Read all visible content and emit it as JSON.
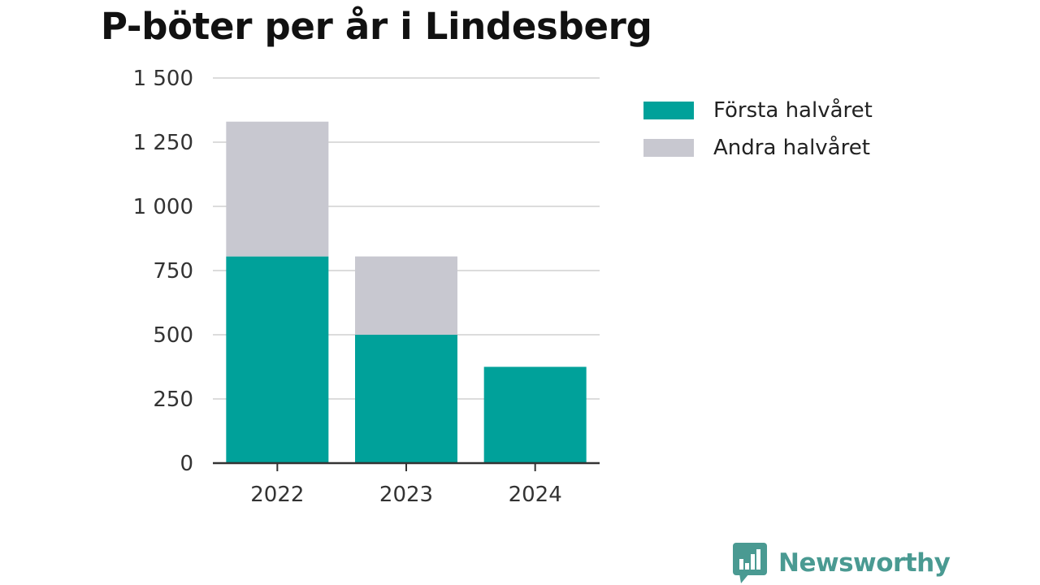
{
  "title": "P-böter per år i Lindesberg",
  "brand": {
    "name": "Newsworthy",
    "logo_icon": "newsworthy-bar-chart-bubble-logo"
  },
  "colors": {
    "first_half": "#00a19a",
    "second_half": "#c8c8d0",
    "grid": "#dcdcdc",
    "axis": "#333333",
    "brand": "#4a9a92"
  },
  "chart_data": {
    "type": "bar",
    "stacked": true,
    "title": "P-böter per år i Lindesberg",
    "xlabel": "",
    "ylabel": "",
    "categories": [
      "2022",
      "2023",
      "2024"
    ],
    "series": [
      {
        "name": "Första halvåret",
        "values": [
          805,
          500,
          375
        ],
        "color": "#00a19a"
      },
      {
        "name": "Andra halvåret",
        "values": [
          525,
          305,
          0
        ],
        "color": "#c8c8d0"
      }
    ],
    "ylim": [
      0,
      1500
    ],
    "yticks": [
      0,
      250,
      500,
      750,
      1000,
      1250,
      1500
    ],
    "ytick_labels": [
      "0",
      "250",
      "500",
      "750",
      "1 000",
      "1 250",
      "1 500"
    ],
    "grid": true,
    "legend_position": "top-right"
  }
}
